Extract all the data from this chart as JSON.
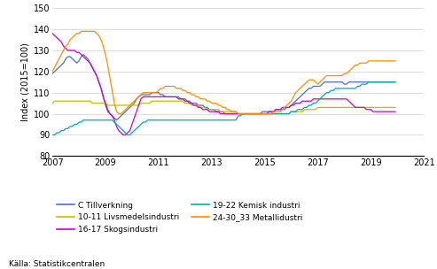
{
  "ylabel": "Index (2015=100)",
  "ylim": [
    80,
    150
  ],
  "xlim": [
    2007.0,
    2021.0
  ],
  "yticks": [
    80,
    90,
    100,
    110,
    120,
    130,
    140,
    150
  ],
  "xticks": [
    2007,
    2009,
    2011,
    2013,
    2015,
    2017,
    2019,
    2021
  ],
  "source": "Källa: Statistikcentralen",
  "colors": {
    "C_Tillverkning": "#4472C4",
    "Livsmedelsindustri": "#BFBF00",
    "Skogsindustri": "#CC00CC",
    "Kemisk_industri": "#00AAAA",
    "Metallidustri": "#FF8C00"
  },
  "legend_labels": {
    "C_Tillverkning": "C Tillverkning",
    "Livsmedelsindustri": "10-11 Livsmedelsindustri",
    "Skogsindustri": "16-17 Skogsindustri",
    "Kemisk_industri": "19-22 Kemisk industri",
    "Metallidustri": "24-30_33 Metallidustri"
  },
  "series": {
    "C_Tillverkning": [
      119,
      120,
      121,
      122,
      123,
      124,
      126,
      127,
      127,
      126,
      125,
      124,
      125,
      127,
      128,
      127,
      126,
      124,
      122,
      120,
      118,
      115,
      112,
      108,
      104,
      101,
      100,
      99,
      98,
      97,
      98,
      99,
      100,
      101,
      102,
      103,
      104,
      105,
      107,
      108,
      109,
      109,
      109,
      109,
      109,
      110,
      110,
      110,
      110,
      109,
      109,
      108,
      108,
      108,
      108,
      108,
      108,
      108,
      107,
      107,
      107,
      106,
      106,
      105,
      105,
      105,
      104,
      104,
      104,
      103,
      103,
      102,
      102,
      102,
      101,
      101,
      101,
      101,
      100,
      100,
      100,
      100,
      100,
      100,
      100,
      100,
      100,
      100,
      100,
      100,
      100,
      100,
      100,
      100,
      100,
      101,
      101,
      101,
      101,
      101,
      101,
      102,
      102,
      102,
      102,
      102,
      103,
      103,
      104,
      105,
      106,
      107,
      108,
      109,
      110,
      111,
      112,
      112,
      113,
      113,
      113,
      113,
      114,
      115,
      115,
      115,
      115,
      115,
      115,
      115,
      115,
      115,
      114,
      114,
      115,
      115,
      115,
      115,
      115,
      115,
      115,
      115,
      115,
      115,
      115,
      115,
      115,
      115,
      115,
      115,
      115,
      115,
      115,
      115,
      115,
      115
    ],
    "Livsmedelsindustri": [
      105,
      106,
      106,
      106,
      106,
      106,
      106,
      106,
      106,
      106,
      106,
      106,
      106,
      106,
      106,
      106,
      106,
      106,
      105,
      105,
      105,
      105,
      105,
      105,
      105,
      104,
      104,
      104,
      104,
      104,
      104,
      104,
      104,
      104,
      104,
      104,
      104,
      104,
      104,
      104,
      105,
      105,
      105,
      105,
      105,
      106,
      106,
      106,
      106,
      106,
      106,
      106,
      106,
      106,
      106,
      106,
      106,
      106,
      106,
      106,
      105,
      105,
      105,
      104,
      104,
      104,
      104,
      103,
      103,
      103,
      102,
      102,
      102,
      102,
      102,
      102,
      101,
      101,
      101,
      101,
      101,
      101,
      101,
      101,
      100,
      100,
      100,
      100,
      100,
      100,
      100,
      100,
      100,
      100,
      100,
      100,
      100,
      100,
      100,
      100,
      100,
      100,
      100,
      100,
      100,
      100,
      100,
      100,
      101,
      101,
      101,
      101,
      101,
      101,
      102,
      102,
      102,
      102,
      102,
      102,
      103,
      103,
      103,
      103,
      103,
      103,
      103,
      103,
      103,
      103,
      103,
      103,
      103,
      103,
      103,
      103,
      103,
      103,
      103,
      103,
      103,
      103,
      103,
      103,
      103,
      103,
      103,
      103,
      103,
      103,
      103,
      103,
      103,
      103,
      103,
      103
    ],
    "Skogsindustri": [
      138,
      137,
      136,
      135,
      134,
      132,
      131,
      130,
      130,
      130,
      130,
      129,
      129,
      128,
      127,
      126,
      125,
      124,
      122,
      120,
      118,
      115,
      112,
      108,
      105,
      102,
      100,
      99,
      97,
      94,
      92,
      91,
      90,
      90,
      91,
      92,
      95,
      98,
      101,
      104,
      107,
      108,
      108,
      108,
      108,
      108,
      108,
      108,
      108,
      108,
      108,
      108,
      108,
      108,
      108,
      108,
      108,
      107,
      107,
      107,
      106,
      106,
      105,
      105,
      104,
      104,
      103,
      103,
      102,
      102,
      102,
      101,
      101,
      101,
      101,
      101,
      100,
      100,
      100,
      100,
      100,
      100,
      100,
      100,
      100,
      100,
      100,
      100,
      100,
      100,
      100,
      100,
      100,
      100,
      100,
      100,
      100,
      100,
      101,
      101,
      101,
      102,
      102,
      102,
      103,
      103,
      103,
      103,
      104,
      104,
      105,
      105,
      105,
      106,
      106,
      106,
      106,
      106,
      107,
      107,
      107,
      107,
      107,
      107,
      107,
      107,
      107,
      107,
      107,
      107,
      107,
      107,
      107,
      107,
      106,
      105,
      104,
      103,
      103,
      103,
      103,
      103,
      102,
      102,
      102,
      101,
      101,
      101,
      101,
      101,
      101,
      101,
      101,
      101,
      101,
      101
    ],
    "Kemisk_industri": [
      90,
      90,
      91,
      91,
      92,
      92,
      93,
      93,
      94,
      94,
      95,
      95,
      96,
      96,
      97,
      97,
      97,
      97,
      97,
      97,
      97,
      97,
      97,
      97,
      97,
      97,
      97,
      97,
      96,
      95,
      94,
      93,
      92,
      91,
      90,
      90,
      91,
      92,
      93,
      94,
      95,
      96,
      96,
      97,
      97,
      97,
      97,
      97,
      97,
      97,
      97,
      97,
      97,
      97,
      97,
      97,
      97,
      97,
      97,
      97,
      97,
      97,
      97,
      97,
      97,
      97,
      97,
      97,
      97,
      97,
      97,
      97,
      97,
      97,
      97,
      97,
      97,
      97,
      97,
      97,
      97,
      97,
      97,
      97,
      99,
      99,
      100,
      100,
      100,
      100,
      100,
      100,
      100,
      100,
      100,
      100,
      100,
      100,
      100,
      100,
      100,
      100,
      100,
      100,
      100,
      100,
      100,
      100,
      101,
      101,
      101,
      102,
      102,
      102,
      103,
      103,
      104,
      104,
      105,
      105,
      106,
      107,
      108,
      109,
      110,
      110,
      111,
      111,
      112,
      112,
      112,
      112,
      112,
      112,
      112,
      112,
      112,
      112,
      113,
      113,
      114,
      114,
      114,
      115,
      115,
      115,
      115,
      115,
      115,
      115,
      115,
      115,
      115,
      115,
      115,
      115
    ],
    "Metallidustri": [
      120,
      122,
      124,
      126,
      128,
      130,
      132,
      133,
      135,
      136,
      137,
      138,
      138,
      139,
      139,
      139,
      139,
      139,
      139,
      139,
      138,
      137,
      135,
      132,
      128,
      123,
      117,
      111,
      105,
      101,
      100,
      100,
      101,
      102,
      103,
      104,
      105,
      106,
      107,
      108,
      109,
      110,
      110,
      110,
      110,
      110,
      110,
      110,
      111,
      112,
      112,
      113,
      113,
      113,
      113,
      113,
      112,
      112,
      112,
      111,
      111,
      110,
      110,
      109,
      109,
      108,
      108,
      107,
      107,
      107,
      106,
      106,
      105,
      105,
      105,
      104,
      104,
      103,
      103,
      102,
      102,
      101,
      101,
      101,
      100,
      100,
      100,
      100,
      100,
      100,
      100,
      100,
      100,
      100,
      100,
      100,
      100,
      100,
      100,
      100,
      101,
      101,
      101,
      101,
      102,
      103,
      104,
      105,
      106,
      108,
      110,
      111,
      112,
      113,
      114,
      115,
      116,
      116,
      116,
      115,
      114,
      115,
      116,
      117,
      118,
      118,
      118,
      118,
      118,
      118,
      118,
      118,
      119,
      119,
      120,
      121,
      122,
      123,
      123,
      124,
      124,
      124,
      124,
      125,
      125,
      125,
      125,
      125,
      125,
      125,
      125,
      125,
      125,
      125,
      125,
      125
    ]
  }
}
